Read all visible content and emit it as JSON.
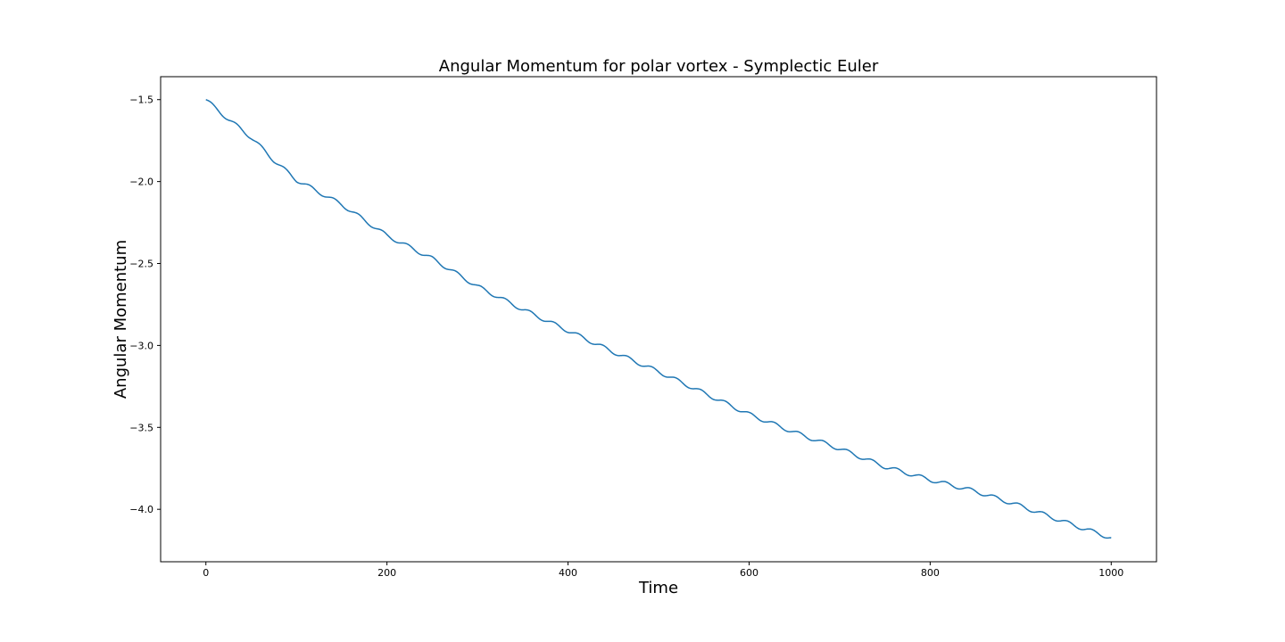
{
  "chart_data": {
    "type": "line",
    "title": "Angular Momentum for polar vortex - Symplectic Euler",
    "xlabel": "Time",
    "ylabel": "Angular Momentum",
    "xlim": [
      -50,
      1050
    ],
    "ylim": [
      -4.32,
      -1.36
    ],
    "x_ticks": [
      0,
      200,
      400,
      600,
      800,
      1000
    ],
    "x_tick_labels": [
      "0",
      "200",
      "400",
      "600",
      "800",
      "1000"
    ],
    "y_ticks": [
      -1.5,
      -2.0,
      -2.5,
      -3.0,
      -3.5,
      -4.0
    ],
    "y_tick_labels": [
      "−1.5",
      "−2.0",
      "−2.5",
      "−3.0",
      "−3.5",
      "−4.0"
    ],
    "grid": false,
    "series": [
      {
        "color": "#1f77b4",
        "trend": {
          "x_start": 0,
          "x_end": 1000,
          "y_start": -1.5,
          "y_end": -4.175
        },
        "oscillation": {
          "amplitude": 0.012,
          "period": 27
        },
        "x": [
          0,
          10,
          25,
          50,
          75,
          100,
          150,
          200,
          250,
          300,
          350,
          400,
          450,
          500,
          550,
          600,
          650,
          700,
          750,
          800,
          850,
          900,
          950,
          1000
        ],
        "y": [
          -1.5,
          -1.55,
          -1.62,
          -1.73,
          -1.87,
          -1.99,
          -2.14,
          -2.33,
          -2.47,
          -2.64,
          -2.78,
          -2.91,
          -3.04,
          -3.16,
          -3.29,
          -3.42,
          -3.53,
          -3.63,
          -3.74,
          -3.82,
          -3.89,
          -3.98,
          -4.08,
          -4.175
        ]
      }
    ]
  }
}
